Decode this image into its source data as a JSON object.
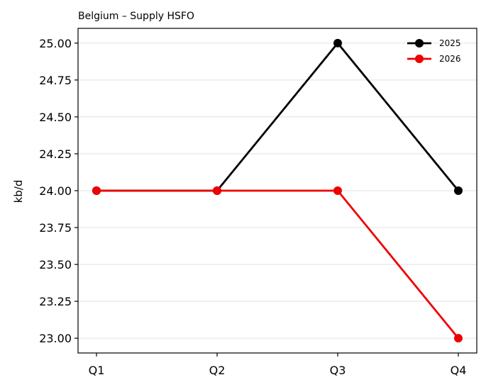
{
  "chart_data": {
    "type": "line",
    "title": "Belgium – Supply HSFO",
    "xlabel": "",
    "ylabel": "kb/d",
    "categories": [
      "Q1",
      "Q2",
      "Q3",
      "Q4"
    ],
    "series": [
      {
        "name": "2025",
        "values": [
          24,
          24,
          25,
          24
        ],
        "color": "#000000"
      },
      {
        "name": "2026",
        "values": [
          24,
          24,
          24,
          23
        ],
        "color": "#ee0000"
      }
    ],
    "ylim": [
      22.9,
      25.1
    ],
    "yticks": [
      "23.00",
      "23.25",
      "23.50",
      "23.75",
      "24.00",
      "24.25",
      "24.50",
      "24.75",
      "25.00"
    ],
    "grid": "horizontal",
    "legend": "top-right"
  }
}
